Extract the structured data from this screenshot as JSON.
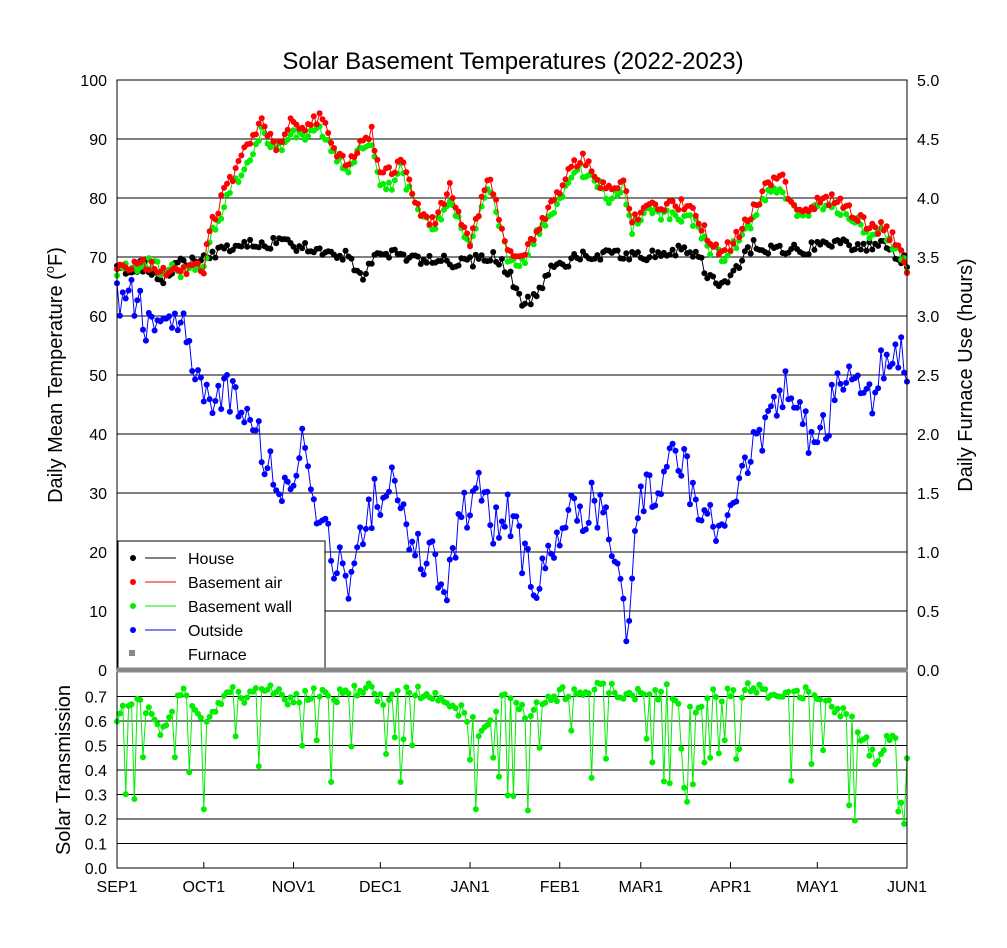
{
  "chart_data": [
    {
      "type": "line",
      "title": "Solar Basement Temperatures (2022-2023)",
      "ylabel": "Daily Mean Temperature (°F)",
      "ylabel_prefix": "Daily Mean Temperature (",
      "ylabel_unit_sup": "o",
      "ylabel_unit": "F)",
      "y2label": "Daily Furnace Use (hours)",
      "ylim": [
        0,
        100
      ],
      "y2lim": [
        0,
        5.0
      ],
      "y_ticks": [
        "0",
        "10",
        "20",
        "30",
        "40",
        "50",
        "60",
        "70",
        "80",
        "90",
        "100"
      ],
      "y2_ticks": [
        "0.0",
        "0.5",
        "1.0",
        "1.5",
        "2.0",
        "2.5",
        "3.0",
        "3.5",
        "4.0",
        "4.5",
        "5.0"
      ],
      "x_ticks": [
        {
          "label": "SEP1",
          "day": 0
        },
        {
          "label": "OCT1",
          "day": 30
        },
        {
          "label": "NOV1",
          "day": 61
        },
        {
          "label": "DEC1",
          "day": 91
        },
        {
          "label": "JAN1",
          "day": 122
        },
        {
          "label": "FEB1",
          "day": 153
        },
        {
          "label": "MAR1",
          "day": 181
        },
        {
          "label": "APR1",
          "day": 212
        },
        {
          "label": "MAY1",
          "day": 242
        },
        {
          "label": "JUN1",
          "day": 273
        }
      ],
      "grid": "horizontal",
      "legend_position": "bottom-left",
      "series": [
        {
          "name": "House",
          "color": "#000000",
          "knots": [
            [
              0,
              68
            ],
            [
              10,
              68.5
            ],
            [
              15,
              66
            ],
            [
              20,
              68.5
            ],
            [
              30,
              70
            ],
            [
              40,
              72
            ],
            [
              50,
              72.5
            ],
            [
              61,
              72
            ],
            [
              70,
              71
            ],
            [
              80,
              70
            ],
            [
              85,
              66
            ],
            [
              90,
              71
            ],
            [
              100,
              70
            ],
            [
              110,
              69.5
            ],
            [
              120,
              69
            ],
            [
              130,
              70
            ],
            [
              135,
              68
            ],
            [
              140,
              62
            ],
            [
              145,
              63
            ],
            [
              150,
              68
            ],
            [
              160,
              70
            ],
            [
              170,
              70.5
            ],
            [
              180,
              70
            ],
            [
              190,
              71
            ],
            [
              200,
              71
            ],
            [
              205,
              66
            ],
            [
              210,
              65
            ],
            [
              215,
              69
            ],
            [
              220,
              72
            ],
            [
              230,
              71
            ],
            [
              240,
              71.5
            ],
            [
              250,
              72
            ],
            [
              258,
              72
            ],
            [
              265,
              72
            ],
            [
              273,
              69
            ]
          ]
        },
        {
          "name": "Basement air",
          "color": "#ff0000",
          "knots": [
            [
              0,
              68
            ],
            [
              10,
              69
            ],
            [
              15,
              68
            ],
            [
              22,
              67.5
            ],
            [
              30,
              68
            ],
            [
              32,
              75
            ],
            [
              40,
              84
            ],
            [
              50,
              93
            ],
            [
              55,
              89
            ],
            [
              61,
              94
            ],
            [
              65,
              91
            ],
            [
              70,
              94
            ],
            [
              75,
              88
            ],
            [
              80,
              86
            ],
            [
              85,
              90
            ],
            [
              88,
              91
            ],
            [
              91,
              85
            ],
            [
              95,
              84
            ],
            [
              98,
              87
            ],
            [
              105,
              77
            ],
            [
              110,
              76
            ],
            [
              115,
              82
            ],
            [
              120,
              75
            ],
            [
              122,
              73
            ],
            [
              128,
              83
            ],
            [
              130,
              81
            ],
            [
              135,
              71
            ],
            [
              140,
              70
            ],
            [
              145,
              75
            ],
            [
              150,
              79
            ],
            [
              155,
              83
            ],
            [
              160,
              87
            ],
            [
              165,
              84
            ],
            [
              170,
              81
            ],
            [
              175,
              84
            ],
            [
              178,
              76
            ],
            [
              182,
              79
            ],
            [
              190,
              79
            ],
            [
              195,
              79
            ],
            [
              200,
              78
            ],
            [
              205,
              72
            ],
            [
              210,
              71
            ],
            [
              215,
              74
            ],
            [
              220,
              78
            ],
            [
              225,
              83
            ],
            [
              230,
              83
            ],
            [
              235,
              78
            ],
            [
              240,
              79
            ],
            [
              245,
              80
            ],
            [
              250,
              79
            ],
            [
              255,
              77
            ],
            [
              260,
              75
            ],
            [
              265,
              75
            ],
            [
              270,
              72
            ],
            [
              273,
              68
            ]
          ]
        },
        {
          "name": "Basement wall",
          "color": "#00ee00",
          "knots": [
            [
              0,
              67.5
            ],
            [
              10,
              69
            ],
            [
              15,
              68
            ],
            [
              22,
              67.5
            ],
            [
              30,
              68
            ],
            [
              32,
              73
            ],
            [
              40,
              82
            ],
            [
              50,
              91
            ],
            [
              55,
              88
            ],
            [
              61,
              91
            ],
            [
              65,
              90
            ],
            [
              70,
              92
            ],
            [
              75,
              87
            ],
            [
              80,
              85
            ],
            [
              85,
              89
            ],
            [
              88,
              89
            ],
            [
              91,
              83
            ],
            [
              95,
              82
            ],
            [
              98,
              85
            ],
            [
              105,
              76
            ],
            [
              110,
              75
            ],
            [
              115,
              80
            ],
            [
              120,
              74
            ],
            [
              122,
              73
            ],
            [
              128,
              81
            ],
            [
              130,
              80
            ],
            [
              135,
              70
            ],
            [
              140,
              69
            ],
            [
              145,
              74
            ],
            [
              150,
              77
            ],
            [
              155,
              81
            ],
            [
              160,
              85
            ],
            [
              165,
              83
            ],
            [
              170,
              80
            ],
            [
              175,
              82
            ],
            [
              178,
              75
            ],
            [
              182,
              78
            ],
            [
              190,
              77
            ],
            [
              195,
              77
            ],
            [
              200,
              76
            ],
            [
              205,
              71
            ],
            [
              210,
              70
            ],
            [
              215,
              73
            ],
            [
              220,
              76
            ],
            [
              225,
              81
            ],
            [
              230,
              81
            ],
            [
              235,
              77
            ],
            [
              240,
              78
            ],
            [
              245,
              79
            ],
            [
              250,
              78
            ],
            [
              255,
              76
            ],
            [
              260,
              74
            ],
            [
              265,
              74
            ],
            [
              270,
              71
            ],
            [
              273,
              68
            ]
          ]
        },
        {
          "name": "Outside",
          "color": "#0000ff",
          "knots": [
            [
              0,
              62
            ],
            [
              5,
              65
            ],
            [
              10,
              58
            ],
            [
              15,
              57
            ],
            [
              20,
              59
            ],
            [
              25,
              56
            ],
            [
              30,
              48
            ],
            [
              35,
              47
            ],
            [
              40,
              46
            ],
            [
              45,
              42
            ],
            [
              50,
              38
            ],
            [
              55,
              32
            ],
            [
              60,
              30
            ],
            [
              65,
              40
            ],
            [
              70,
              25
            ],
            [
              75,
              18
            ],
            [
              80,
              16
            ],
            [
              85,
              25
            ],
            [
              90,
              30
            ],
            [
              95,
              31
            ],
            [
              100,
              25
            ],
            [
              105,
              18
            ],
            [
              110,
              20
            ],
            [
              113,
              11
            ],
            [
              115,
              17
            ],
            [
              120,
              27
            ],
            [
              125,
              30
            ],
            [
              130,
              24
            ],
            [
              135,
              28
            ],
            [
              140,
              20
            ],
            [
              145,
              14
            ],
            [
              150,
              20
            ],
            [
              155,
              25
            ],
            [
              160,
              27
            ],
            [
              165,
              28
            ],
            [
              170,
              24
            ],
            [
              174,
              18
            ],
            [
              176,
              2
            ],
            [
              180,
              28
            ],
            [
              185,
              30
            ],
            [
              190,
              36
            ],
            [
              195,
              35
            ],
            [
              200,
              30
            ],
            [
              205,
              25
            ],
            [
              210,
              22
            ],
            [
              215,
              32
            ],
            [
              220,
              38
            ],
            [
              225,
              40
            ],
            [
              230,
              48
            ],
            [
              235,
              45
            ],
            [
              240,
              38
            ],
            [
              245,
              42
            ],
            [
              250,
              50
            ],
            [
              255,
              49
            ],
            [
              260,
              46
            ],
            [
              265,
              52
            ],
            [
              270,
              55
            ],
            [
              273,
              50
            ]
          ]
        },
        {
          "name": "Furnace",
          "color": "#888888",
          "knots": []
        }
      ]
    },
    {
      "type": "scatter",
      "ylabel": "Solar Transmission",
      "ylim": [
        0,
        0.8
      ],
      "y_ticks": [
        "0.0",
        "0.1",
        "0.2",
        "0.3",
        "0.4",
        "0.5",
        "0.6",
        "0.7"
      ],
      "series": [
        {
          "color": "#00ee00",
          "knots": [
            [
              0,
              0.62
            ],
            [
              8,
              0.7
            ],
            [
              15,
              0.55
            ],
            [
              22,
              0.73
            ],
            [
              30,
              0.6
            ],
            [
              38,
              0.72
            ],
            [
              45,
              0.7
            ],
            [
              53,
              0.72
            ],
            [
              61,
              0.68
            ],
            [
              70,
              0.72
            ],
            [
              78,
              0.7
            ],
            [
              86,
              0.73
            ],
            [
              94,
              0.68
            ],
            [
              102,
              0.72
            ],
            [
              110,
              0.7
            ],
            [
              118,
              0.65
            ],
            [
              126,
              0.55
            ],
            [
              134,
              0.7
            ],
            [
              142,
              0.62
            ],
            [
              150,
              0.7
            ],
            [
              158,
              0.73
            ],
            [
              166,
              0.74
            ],
            [
              174,
              0.72
            ],
            [
              182,
              0.7
            ],
            [
              190,
              0.72
            ],
            [
              198,
              0.65
            ],
            [
              206,
              0.7
            ],
            [
              214,
              0.72
            ],
            [
              222,
              0.73
            ],
            [
              230,
              0.7
            ],
            [
              238,
              0.72
            ],
            [
              246,
              0.68
            ],
            [
              254,
              0.6
            ],
            [
              262,
              0.45
            ],
            [
              268,
              0.55
            ],
            [
              273,
              0.45
            ]
          ]
        }
      ]
    }
  ]
}
